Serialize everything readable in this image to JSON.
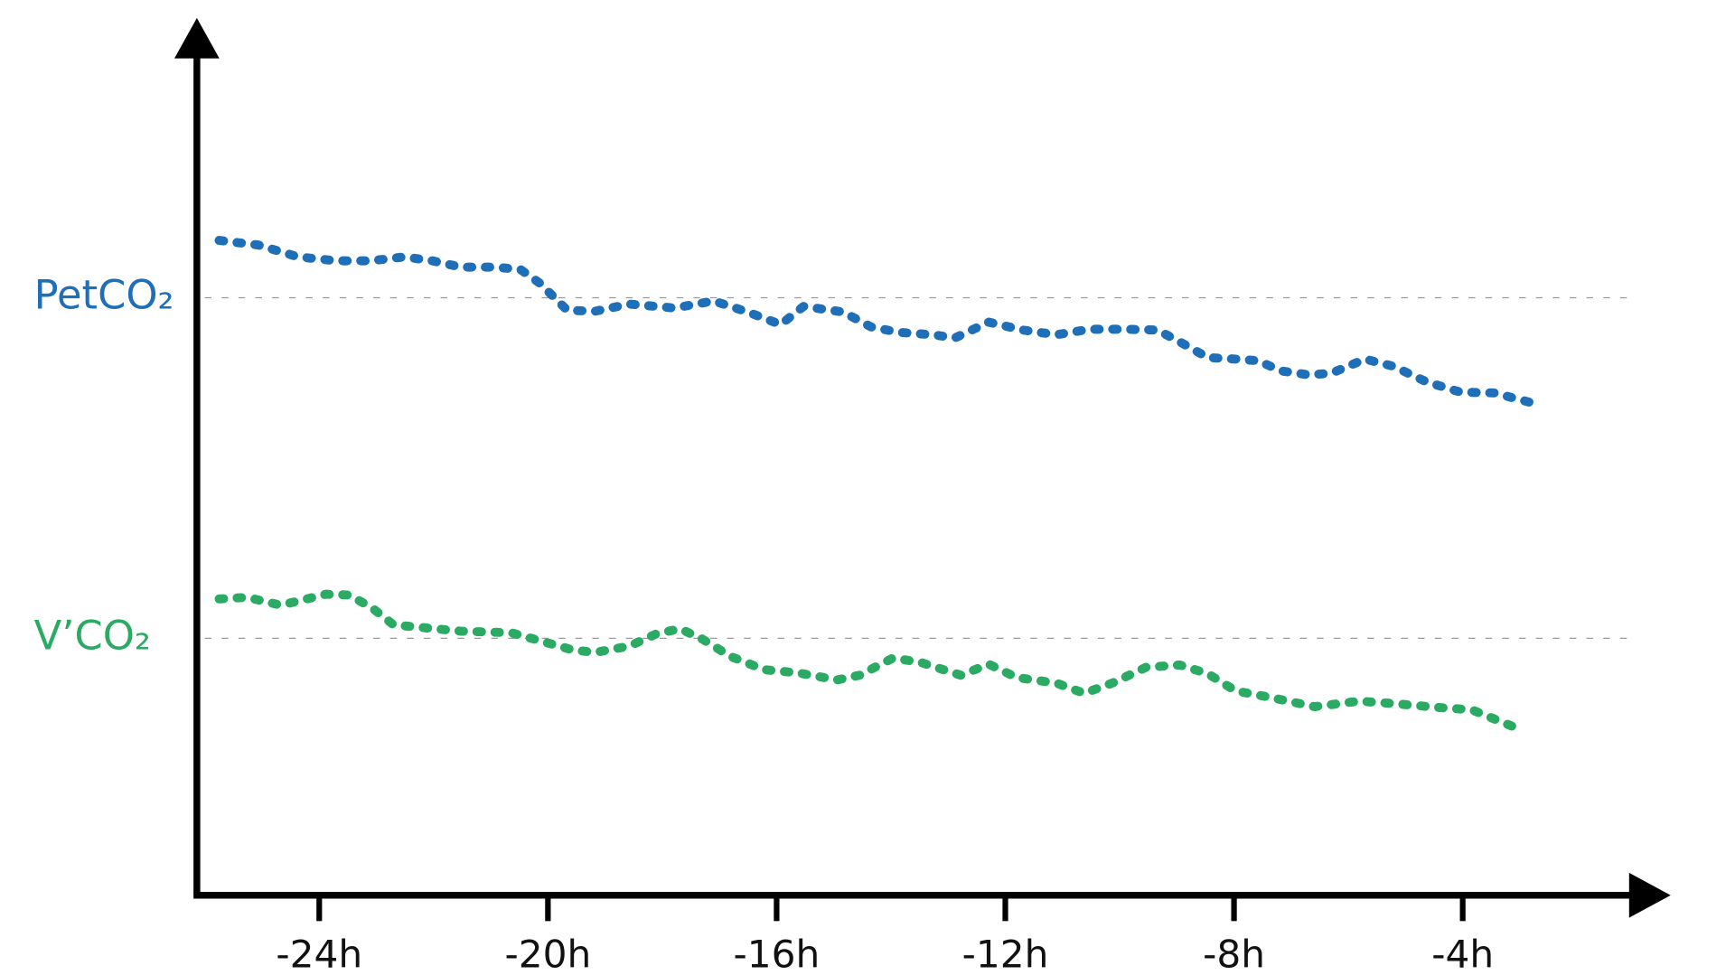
{
  "chart_data": {
    "type": "line",
    "xlim": [
      -26.14,
      -0.5
    ],
    "xticks": [
      {
        "value": -24,
        "label": "-24h"
      },
      {
        "value": -20,
        "label": "-20h"
      },
      {
        "value": -16,
        "label": "-16h"
      },
      {
        "value": -12,
        "label": "-12h"
      },
      {
        "value": -8,
        "label": "-8h"
      },
      {
        "value": -4,
        "label": "-4h"
      }
    ],
    "ylim": [
      0,
      111
    ],
    "series": [
      {
        "name": "PetCO₂",
        "color": "#1f6fb8",
        "reference": 75.7,
        "x": [
          -25.75,
          -25.06,
          -24.37,
          -23.69,
          -23.1,
          -22.51,
          -22.02,
          -21.52,
          -20.94,
          -20.48,
          -20.15,
          -19.66,
          -19.17,
          -18.58,
          -17.79,
          -17.1,
          -16.51,
          -15.93,
          -15.53,
          -14.84,
          -14.35,
          -13.86,
          -13.27,
          -12.88,
          -12.29,
          -11.7,
          -11.11,
          -10.52,
          -9.93,
          -9.34,
          -8.95,
          -8.46,
          -7.97,
          -7.58,
          -7.18,
          -6.69,
          -6.3,
          -5.71,
          -5.22,
          -4.63,
          -4.04,
          -3.45,
          -2.82
        ],
        "values": [
          83.0,
          82.4,
          80.9,
          80.4,
          80.4,
          80.9,
          80.4,
          79.6,
          79.6,
          79.3,
          77.6,
          74.1,
          74.0,
          74.9,
          74.4,
          75.3,
          73.9,
          72.3,
          74.6,
          73.9,
          72.0,
          71.3,
          71.0,
          70.6,
          72.6,
          71.6,
          71.0,
          71.7,
          71.7,
          71.6,
          70.1,
          68.1,
          67.9,
          67.7,
          66.4,
          65.9,
          66.1,
          67.9,
          67.0,
          65.0,
          63.7,
          63.6,
          62.4
        ]
      },
      {
        "name": "V’CO₂",
        "color": "#2aaa62",
        "reference": 32.4,
        "x": [
          -25.75,
          -25.26,
          -24.67,
          -23.88,
          -23.49,
          -23.1,
          -22.7,
          -22.11,
          -21.52,
          -20.64,
          -20.15,
          -19.56,
          -19.17,
          -18.58,
          -18.09,
          -17.69,
          -17.3,
          -16.81,
          -16.22,
          -15.63,
          -14.94,
          -14.55,
          -13.96,
          -13.47,
          -12.78,
          -12.29,
          -11.8,
          -11.11,
          -10.62,
          -10.13,
          -9.54,
          -8.95,
          -8.46,
          -7.97,
          -7.38,
          -6.59,
          -5.81,
          -5.22,
          -4.43,
          -3.84,
          -3.1
        ],
        "values": [
          37.4,
          37.6,
          36.6,
          38.0,
          37.9,
          36.4,
          34.1,
          33.7,
          33.3,
          33.1,
          32.1,
          30.9,
          30.6,
          31.4,
          33.0,
          33.6,
          32.3,
          30.1,
          28.4,
          28.0,
          27.1,
          27.7,
          29.9,
          29.3,
          27.7,
          29.1,
          27.4,
          26.7,
          25.4,
          26.7,
          28.7,
          29.0,
          27.9,
          25.7,
          24.9,
          23.7,
          24.4,
          24.1,
          23.6,
          23.3,
          21.1
        ]
      }
    ]
  }
}
